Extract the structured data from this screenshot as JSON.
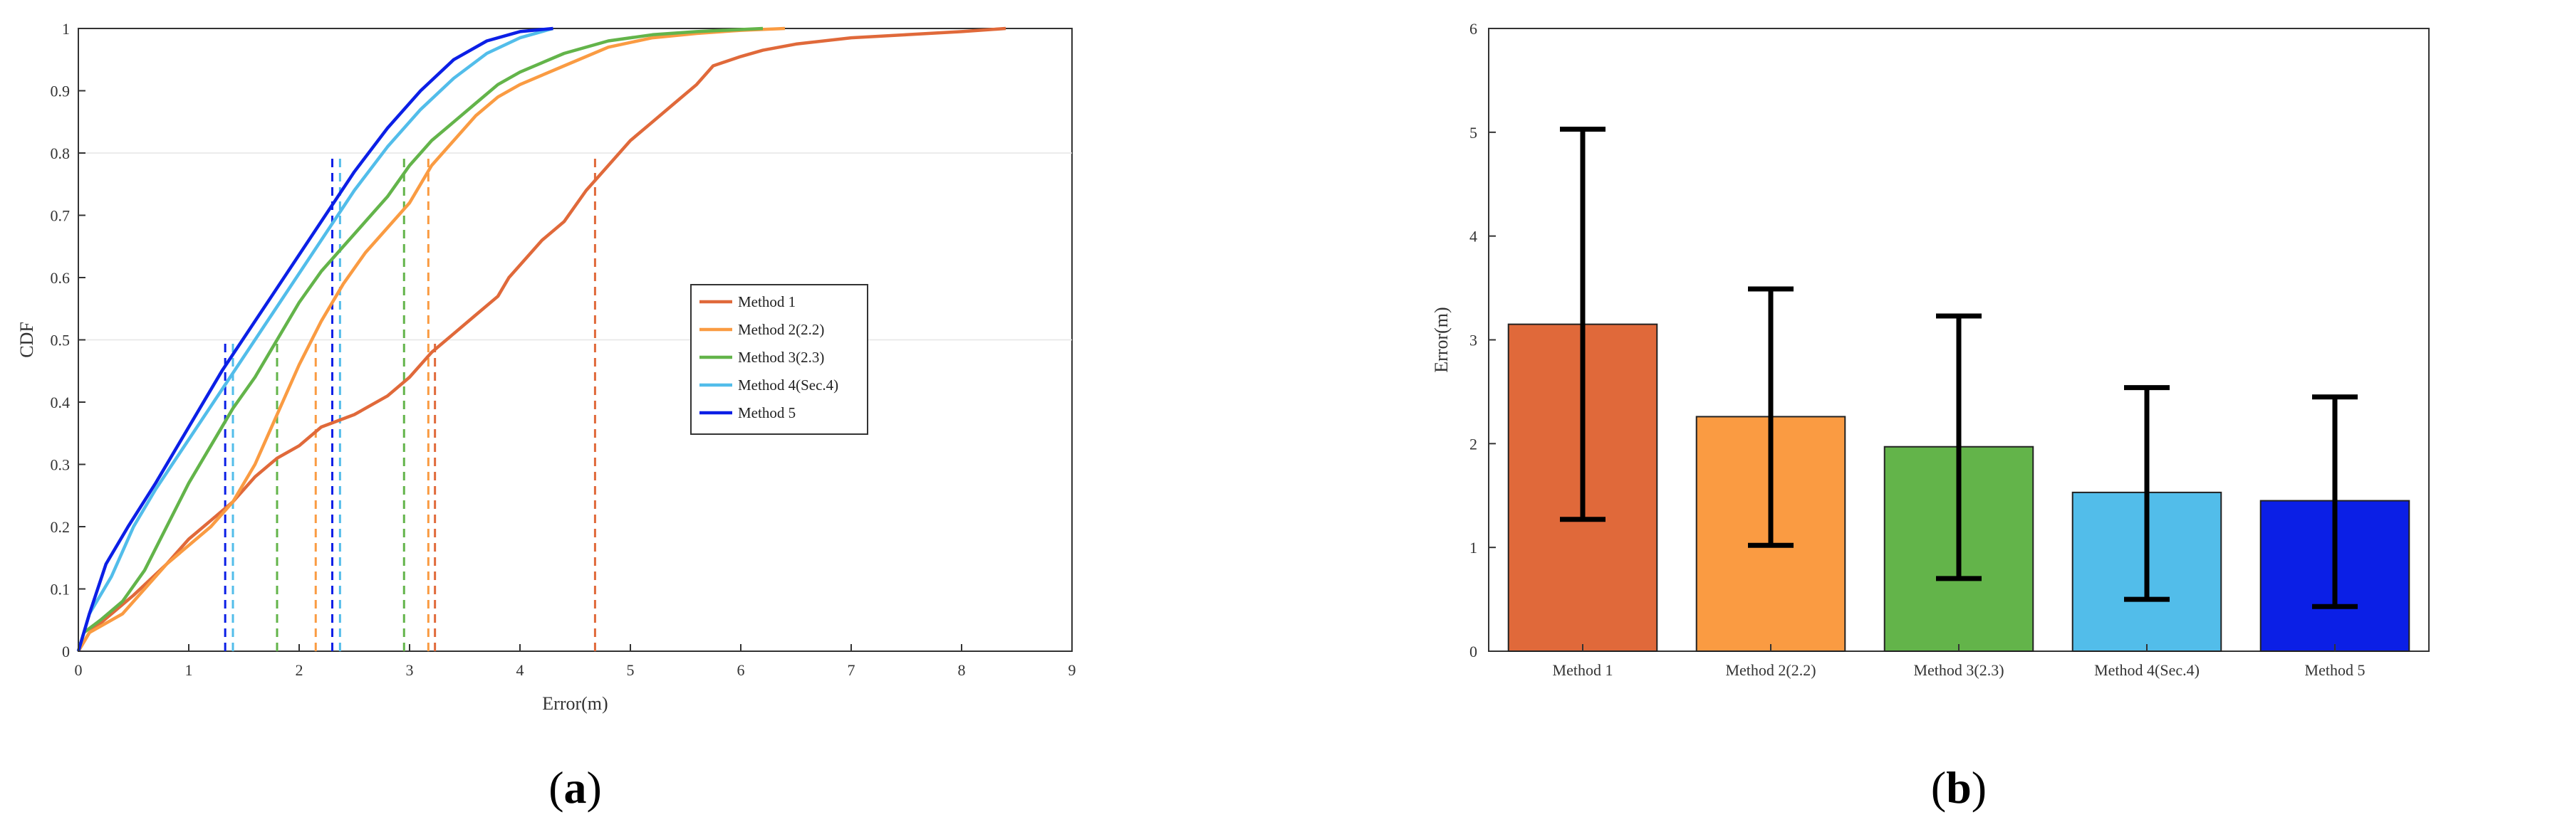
{
  "colors": {
    "method1": "#e0693a",
    "method2": "#fa9b42",
    "method3": "#63b44a",
    "method4": "#52bdea",
    "method5": "#0b1fe6",
    "error_bar": "#000000",
    "axis": "#333333",
    "grid": "#e6e6e6"
  },
  "chart_data": [
    {
      "type": "line",
      "panel_label": "(a)",
      "panel_letter": "a",
      "xlabel": "Error(m)",
      "ylabel": "CDF",
      "xlim": [
        0,
        9
      ],
      "ylim": [
        0,
        1
      ],
      "x_ticks": [
        "0",
        "1",
        "2",
        "3",
        "4",
        "5",
        "6",
        "7",
        "8",
        "9"
      ],
      "y_ticks": [
        "0",
        "0.1",
        "0.2",
        "0.3",
        "0.4",
        "0.5",
        "0.6",
        "0.7",
        "0.8",
        "0.9",
        "1"
      ],
      "grid": false,
      "legend_position": "center-right",
      "series": [
        {
          "name": "Method 1",
          "color_key": "method1",
          "points": [
            [
              0,
              0
            ],
            [
              0.1,
              0.03
            ],
            [
              0.3,
              0.06
            ],
            [
              0.5,
              0.09
            ],
            [
              0.8,
              0.14
            ],
            [
              1.0,
              0.18
            ],
            [
              1.2,
              0.21
            ],
            [
              1.4,
              0.24
            ],
            [
              1.6,
              0.28
            ],
            [
              1.8,
              0.31
            ],
            [
              2.0,
              0.33
            ],
            [
              2.2,
              0.36
            ],
            [
              2.5,
              0.38
            ],
            [
              2.8,
              0.41
            ],
            [
              3.0,
              0.44
            ],
            [
              3.2,
              0.48
            ],
            [
              3.4,
              0.51
            ],
            [
              3.6,
              0.54
            ],
            [
              3.8,
              0.57
            ],
            [
              3.9,
              0.6
            ],
            [
              4.0,
              0.62
            ],
            [
              4.2,
              0.66
            ],
            [
              4.4,
              0.69
            ],
            [
              4.6,
              0.74
            ],
            [
              4.75,
              0.77
            ],
            [
              5.0,
              0.82
            ],
            [
              5.2,
              0.85
            ],
            [
              5.4,
              0.88
            ],
            [
              5.6,
              0.91
            ],
            [
              5.75,
              0.94
            ],
            [
              6.0,
              0.955
            ],
            [
              6.2,
              0.965
            ],
            [
              6.5,
              0.975
            ],
            [
              7.0,
              0.985
            ],
            [
              7.5,
              0.99
            ],
            [
              8.0,
              0.995
            ],
            [
              8.4,
              1.0
            ]
          ],
          "reference_x": 4.68
        },
        {
          "name": "Method 2(2.2)",
          "color_key": "method2",
          "points": [
            [
              0,
              0
            ],
            [
              0.1,
              0.03
            ],
            [
              0.4,
              0.06
            ],
            [
              0.6,
              0.1
            ],
            [
              0.8,
              0.14
            ],
            [
              1.0,
              0.17
            ],
            [
              1.2,
              0.2
            ],
            [
              1.4,
              0.24
            ],
            [
              1.6,
              0.3
            ],
            [
              1.8,
              0.38
            ],
            [
              2.0,
              0.46
            ],
            [
              2.2,
              0.53
            ],
            [
              2.4,
              0.59
            ],
            [
              2.6,
              0.64
            ],
            [
              2.8,
              0.68
            ],
            [
              3.0,
              0.72
            ],
            [
              3.2,
              0.78
            ],
            [
              3.4,
              0.82
            ],
            [
              3.6,
              0.86
            ],
            [
              3.8,
              0.89
            ],
            [
              4.0,
              0.91
            ],
            [
              4.4,
              0.94
            ],
            [
              4.8,
              0.97
            ],
            [
              5.2,
              0.985
            ],
            [
              5.6,
              0.992
            ],
            [
              6.0,
              0.997
            ],
            [
              6.4,
              1.0
            ]
          ],
          "reference_x": 3.17
        },
        {
          "name": "Method 3(2.3)",
          "color_key": "method3",
          "points": [
            [
              0,
              0
            ],
            [
              0.05,
              0.03
            ],
            [
              0.2,
              0.05
            ],
            [
              0.4,
              0.08
            ],
            [
              0.6,
              0.13
            ],
            [
              0.8,
              0.2
            ],
            [
              1.0,
              0.27
            ],
            [
              1.2,
              0.33
            ],
            [
              1.4,
              0.39
            ],
            [
              1.6,
              0.44
            ],
            [
              1.8,
              0.5
            ],
            [
              2.0,
              0.56
            ],
            [
              2.2,
              0.61
            ],
            [
              2.4,
              0.65
            ],
            [
              2.6,
              0.69
            ],
            [
              2.8,
              0.73
            ],
            [
              3.0,
              0.78
            ],
            [
              3.2,
              0.82
            ],
            [
              3.4,
              0.85
            ],
            [
              3.6,
              0.88
            ],
            [
              3.8,
              0.91
            ],
            [
              4.0,
              0.93
            ],
            [
              4.4,
              0.96
            ],
            [
              4.8,
              0.98
            ],
            [
              5.2,
              0.99
            ],
            [
              5.6,
              0.995
            ],
            [
              6.2,
              1.0
            ]
          ],
          "reference_x": 2.95
        },
        {
          "name": "Method 4(Sec.4)",
          "color_key": "method4",
          "points": [
            [
              0,
              0
            ],
            [
              0.1,
              0.06
            ],
            [
              0.3,
              0.12
            ],
            [
              0.5,
              0.2
            ],
            [
              0.7,
              0.26
            ],
            [
              1.0,
              0.34
            ],
            [
              1.3,
              0.42
            ],
            [
              1.6,
              0.5
            ],
            [
              1.9,
              0.58
            ],
            [
              2.2,
              0.66
            ],
            [
              2.5,
              0.74
            ],
            [
              2.8,
              0.81
            ],
            [
              3.1,
              0.87
            ],
            [
              3.4,
              0.92
            ],
            [
              3.7,
              0.96
            ],
            [
              4.0,
              0.985
            ],
            [
              4.3,
              1.0
            ]
          ],
          "reference_x": 2.37
        },
        {
          "name": "Method 5",
          "color_key": "method5",
          "points": [
            [
              0,
              0
            ],
            [
              0.1,
              0.06
            ],
            [
              0.25,
              0.14
            ],
            [
              0.45,
              0.2
            ],
            [
              0.7,
              0.27
            ],
            [
              1.0,
              0.36
            ],
            [
              1.3,
              0.45
            ],
            [
              1.6,
              0.53
            ],
            [
              1.9,
              0.61
            ],
            [
              2.2,
              0.69
            ],
            [
              2.5,
              0.77
            ],
            [
              2.8,
              0.84
            ],
            [
              3.1,
              0.9
            ],
            [
              3.4,
              0.95
            ],
            [
              3.7,
              0.98
            ],
            [
              4.0,
              0.995
            ],
            [
              4.3,
              1.0
            ]
          ],
          "reference_x": 2.3
        }
      ],
      "median_markers": [
        {
          "color_key": "method5",
          "x": 1.33
        },
        {
          "color_key": "method4",
          "x": 1.4
        },
        {
          "color_key": "method3",
          "x": 1.8
        },
        {
          "color_key": "method2",
          "x": 2.15
        },
        {
          "color_key": "method1",
          "x": 3.23
        }
      ],
      "percentile_markers_level": [
        0.5,
        0.8
      ]
    },
    {
      "type": "bar",
      "panel_label": "(b)",
      "panel_letter": "b",
      "xlabel": "",
      "ylabel": "Error(m)",
      "ylim": [
        0,
        6
      ],
      "y_ticks": [
        "0",
        "1",
        "2",
        "3",
        "4",
        "5",
        "6"
      ],
      "categories": [
        "Method 1",
        "Method 2(2.2)",
        "Method 3(2.3)",
        "Method 4(Sec.4)",
        "Method 5"
      ],
      "values": [
        3.15,
        2.26,
        1.97,
        1.53,
        1.45
      ],
      "error_low": [
        1.27,
        1.02,
        0.7,
        0.5,
        0.43
      ],
      "error_high": [
        5.03,
        3.49,
        3.23,
        2.54,
        2.45
      ],
      "color_keys": [
        "method1",
        "method2",
        "method3",
        "method4",
        "method5"
      ]
    }
  ]
}
